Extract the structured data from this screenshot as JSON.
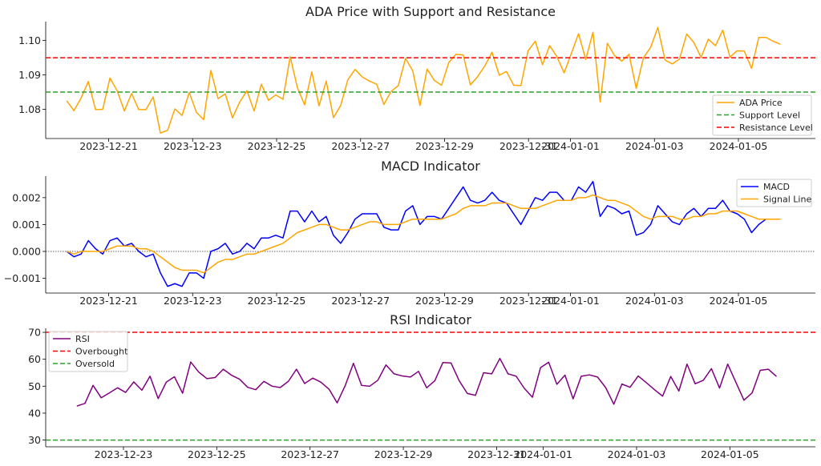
{
  "chart_data": [
    {
      "type": "line",
      "title": "ADA Price with Support and Resistance",
      "xlabel": "",
      "ylabel": "",
      "x_start": "2023-12-20",
      "x_end": "2024-01-06",
      "xlim": [
        "2023-12-19 12:00",
        "2024-01-06 20:00"
      ],
      "ylim": [
        1.0715,
        1.1055
      ],
      "yticks": [
        1.08,
        1.09,
        1.1
      ],
      "ytick_labels": [
        "1.08",
        "1.09",
        "1.10"
      ],
      "xtick_labels": [
        "2023-12-21",
        "2023-12-23",
        "2023-12-25",
        "2023-12-27",
        "2023-12-29",
        "2023-12-31",
        "2024-01-01",
        "2024-01-03",
        "2024-01-05"
      ],
      "series": [
        {
          "name": "ADA Price",
          "color": "#FFA500",
          "style": "solid",
          "values": [
            1.0825,
            1.0796,
            1.0833,
            1.0881,
            1.0799,
            1.08,
            1.0891,
            1.0854,
            1.0795,
            1.0846,
            1.0799,
            1.0799,
            1.0836,
            1.0731,
            1.0739,
            1.0801,
            1.0782,
            1.0849,
            1.0791,
            1.077,
            1.0913,
            1.0831,
            1.0845,
            1.0775,
            1.0821,
            1.0854,
            1.0795,
            1.0873,
            1.0826,
            1.0842,
            1.0829,
            1.0953,
            1.0863,
            1.0813,
            1.0909,
            1.081,
            1.0882,
            1.0776,
            1.0811,
            1.0886,
            1.0916,
            1.0894,
            1.0882,
            1.0873,
            1.0814,
            1.0852,
            1.0869,
            1.0948,
            1.0912,
            1.0811,
            1.0917,
            1.0884,
            1.087,
            1.0936,
            1.096,
            1.0958,
            1.0871,
            1.0895,
            1.0926,
            1.0966,
            1.0899,
            1.091,
            1.087,
            1.0869,
            1.097,
            1.0998,
            1.093,
            1.0985,
            1.0953,
            1.0906,
            1.0962,
            1.102,
            1.0945,
            1.1024,
            1.0821,
            1.0992,
            1.0956,
            1.094,
            1.096,
            1.0861,
            1.095,
            1.098,
            1.1038,
            1.0943,
            1.0932,
            1.0946,
            1.1019,
            1.0994,
            1.0951,
            1.1004,
            1.0985,
            1.103,
            1.0952,
            1.097,
            1.0969,
            1.0919,
            1.1009,
            1.1009,
            1.0998,
            1.0989
          ]
        },
        {
          "name": "Support Level",
          "color": "#2ca02c",
          "style": "dashed",
          "values": [
            1.085,
            1.085
          ]
        },
        {
          "name": "Resistance Level",
          "color": "#ff0000",
          "style": "dashed",
          "values": [
            1.095,
            1.095
          ]
        }
      ],
      "legend": "bottom-right",
      "grid": false
    },
    {
      "type": "line",
      "title": "MACD Indicator",
      "xlabel": "",
      "ylabel": "",
      "x_start": "2023-12-20",
      "x_end": "2024-01-06",
      "xlim": [
        "2023-12-19 12:00",
        "2024-01-06 20:00"
      ],
      "ylim": [
        -0.00155,
        0.0028
      ],
      "yticks": [
        -0.001,
        0.0,
        0.001,
        0.002
      ],
      "ytick_labels": [
        "−0.001",
        "0.000",
        "0.001",
        "0.002"
      ],
      "xtick_labels": [
        "2023-12-21",
        "2023-12-23",
        "2023-12-25",
        "2023-12-27",
        "2023-12-29",
        "2023-12-31",
        "2024-01-01",
        "2024-01-03",
        "2024-01-05"
      ],
      "zero_line": 0.0,
      "series": [
        {
          "name": "MACD",
          "color": "#0000ff",
          "style": "solid",
          "values": [
            0.0,
            -0.0002,
            -0.0001,
            0.0004,
            0.0001,
            -0.0001,
            0.0004,
            0.0005,
            0.0002,
            0.0003,
            0.0,
            -0.0002,
            -0.0001,
            -0.0008,
            -0.0013,
            -0.0012,
            -0.0013,
            -0.0008,
            -0.0008,
            -0.001,
            0.0,
            0.0001,
            0.0003,
            -0.0001,
            0.0,
            0.0003,
            0.0001,
            0.0005,
            0.0005,
            0.0006,
            0.0005,
            0.0015,
            0.0015,
            0.0011,
            0.0015,
            0.0011,
            0.0013,
            0.0006,
            0.0003,
            0.0007,
            0.0012,
            0.0014,
            0.0014,
            0.0014,
            0.0009,
            0.0008,
            0.0008,
            0.0015,
            0.0017,
            0.001,
            0.0013,
            0.0013,
            0.0012,
            0.0016,
            0.002,
            0.0024,
            0.0019,
            0.0018,
            0.0019,
            0.0022,
            0.0019,
            0.0018,
            0.0014,
            0.001,
            0.0015,
            0.002,
            0.0019,
            0.0022,
            0.0022,
            0.0019,
            0.0019,
            0.0024,
            0.0022,
            0.0026,
            0.0013,
            0.0017,
            0.0016,
            0.0014,
            0.0015,
            0.0006,
            0.0007,
            0.001,
            0.0017,
            0.0014,
            0.0011,
            0.001,
            0.0014,
            0.0016,
            0.0013,
            0.0016,
            0.0016,
            0.0019,
            0.0015,
            0.0014,
            0.0012,
            0.0007,
            0.001,
            0.0012,
            0.0012,
            0.0012
          ]
        },
        {
          "name": "Signal Line",
          "color": "#FFA500",
          "style": "solid",
          "values": [
            0.0,
            -0.0001,
            0.0,
            0.0,
            0.0,
            0.0,
            0.0001,
            0.0002,
            0.0002,
            0.0002,
            0.0001,
            0.0001,
            0.0,
            -0.0002,
            -0.0004,
            -0.0006,
            -0.0007,
            -0.0007,
            -0.0007,
            -0.0008,
            -0.0006,
            -0.0004,
            -0.0003,
            -0.0003,
            -0.0002,
            -0.0001,
            -0.0001,
            0.0,
            0.0001,
            0.0002,
            0.0003,
            0.0005,
            0.0007,
            0.0008,
            0.0009,
            0.001,
            0.001,
            0.0009,
            0.0008,
            0.0008,
            0.0009,
            0.001,
            0.0011,
            0.0011,
            0.001,
            0.001,
            0.001,
            0.0011,
            0.0012,
            0.0012,
            0.0012,
            0.0012,
            0.0012,
            0.0013,
            0.0014,
            0.0016,
            0.0017,
            0.0017,
            0.0017,
            0.0018,
            0.0018,
            0.0018,
            0.0017,
            0.0016,
            0.0016,
            0.0016,
            0.0017,
            0.0018,
            0.0019,
            0.0019,
            0.0019,
            0.002,
            0.002,
            0.0021,
            0.002,
            0.0019,
            0.0019,
            0.0018,
            0.0017,
            0.0015,
            0.0013,
            0.0012,
            0.0013,
            0.0013,
            0.0013,
            0.0012,
            0.0012,
            0.0013,
            0.0013,
            0.0014,
            0.0014,
            0.0015,
            0.0015,
            0.0015,
            0.0014,
            0.0013,
            0.0012,
            0.0012,
            0.0012,
            0.0012
          ]
        }
      ],
      "legend": "top-right",
      "grid": false
    },
    {
      "type": "line",
      "title": "RSI Indicator",
      "xlabel": "",
      "ylabel": "",
      "x_start": "2023-12-22",
      "x_end": "2024-01-06",
      "xlim": [
        "2023-12-21 08:00",
        "2024-01-06 20:00"
      ],
      "ylim": [
        27.5,
        71.5
      ],
      "yticks": [
        30,
        40,
        50,
        60,
        70
      ],
      "ytick_labels": [
        "30",
        "40",
        "50",
        "60",
        "70"
      ],
      "xtick_labels": [
        "2023-12-23",
        "2023-12-25",
        "2023-12-27",
        "2023-12-29",
        "2023-12-31",
        "2024-01-01",
        "2024-01-03",
        "2024-01-05"
      ],
      "series": [
        {
          "name": "RSI",
          "color": "#800080",
          "style": "solid",
          "values": [
            42.6,
            43.6,
            50.3,
            45.7,
            47.5,
            49.4,
            47.7,
            51.6,
            48.5,
            53.7,
            45.4,
            51.5,
            53.5,
            47.4,
            59.0,
            55.2,
            52.8,
            53.2,
            56.3,
            54.1,
            52.6,
            49.6,
            48.7,
            51.8,
            50.0,
            49.5,
            51.8,
            56.3,
            51.0,
            53.0,
            51.5,
            48.9,
            43.8,
            50.3,
            58.5,
            50.3,
            50.0,
            52.2,
            57.9,
            54.6,
            53.8,
            53.4,
            55.5,
            49.4,
            52.0,
            58.8,
            58.6,
            52.0,
            47.3,
            46.6,
            55.0,
            54.6,
            60.3,
            54.6,
            53.7,
            49.2,
            45.9,
            56.9,
            58.9,
            50.7,
            54.1,
            45.3,
            53.7,
            54.2,
            53.4,
            49.5,
            43.3,
            50.8,
            49.6,
            53.8,
            51.3,
            48.7,
            46.3,
            53.6,
            48.2,
            58.2,
            50.9,
            52.2,
            56.5,
            49.3,
            58.2,
            51.5,
            44.8,
            47.5,
            55.9,
            56.3,
            53.6
          ]
        },
        {
          "name": "Overbought",
          "color": "#ff0000",
          "style": "dashed",
          "values": [
            70,
            70
          ]
        },
        {
          "name": "Oversold",
          "color": "#2ca02c",
          "style": "dashed",
          "values": [
            30,
            30
          ]
        }
      ],
      "legend": "top-left",
      "grid": false
    }
  ]
}
